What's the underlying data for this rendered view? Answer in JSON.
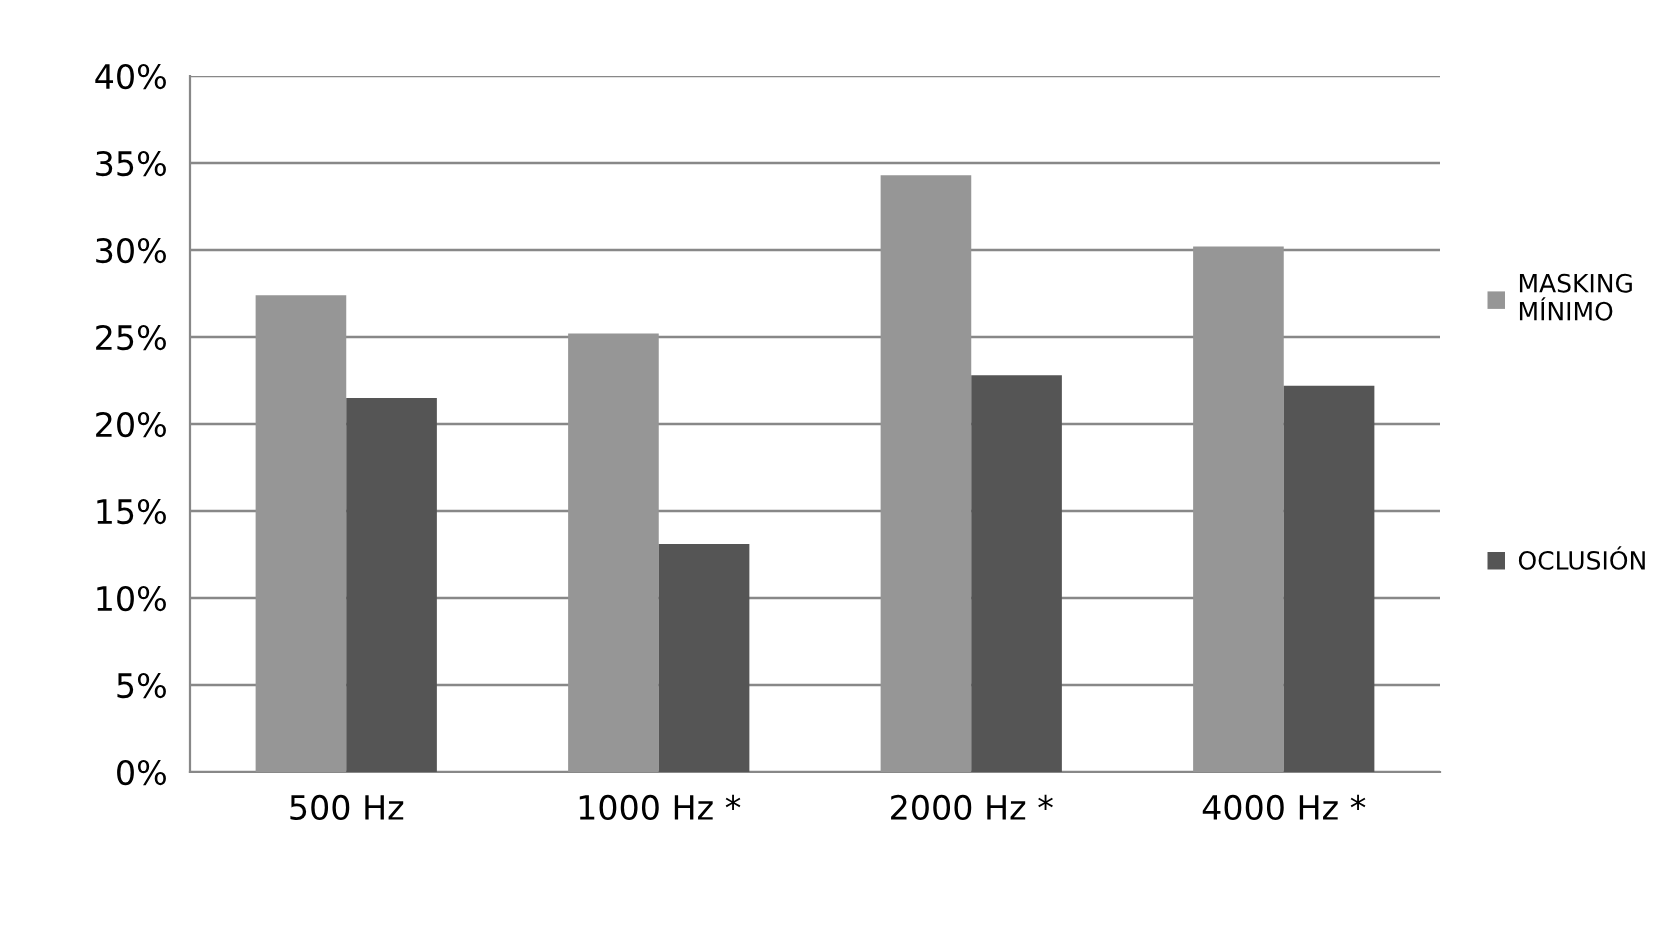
{
  "chart_data": {
    "type": "bar",
    "categories": [
      "500 Hz",
      "1000 Hz *",
      "2000 Hz *",
      "4000 Hz *"
    ],
    "series": [
      {
        "name": "MASKING MÍNIMO",
        "color": "#969696",
        "values": [
          27.4,
          25.2,
          34.3,
          30.2
        ]
      },
      {
        "name": "OCLUSIÓN",
        "color": "#555555",
        "values": [
          21.5,
          13.1,
          22.8,
          22.2
        ]
      }
    ],
    "ylim": [
      0,
      40
    ],
    "yticks": [
      {
        "value": 0,
        "label": "0%"
      },
      {
        "value": 5,
        "label": "5%"
      },
      {
        "value": 10,
        "label": "10%"
      },
      {
        "value": 15,
        "label": "15%"
      },
      {
        "value": 20,
        "label": "20%"
      },
      {
        "value": 25,
        "label": "25%"
      },
      {
        "value": 30,
        "label": "30%"
      },
      {
        "value": 35,
        "label": "35%"
      },
      {
        "value": 40,
        "label": "40%"
      }
    ],
    "grid": "y",
    "legend": "right"
  }
}
